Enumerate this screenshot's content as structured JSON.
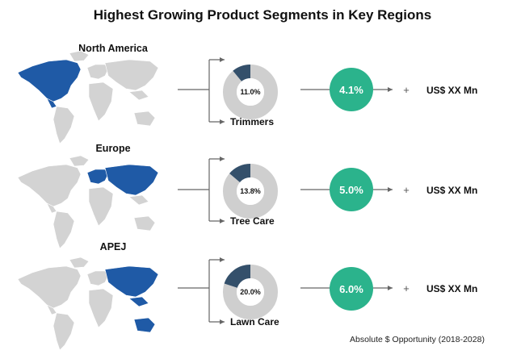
{
  "title": "Highest Growing Product Segments in Key Regions",
  "footnote": "Absolute $ Opportunity (2018-2028)",
  "colors": {
    "map_base": "#d3d3d3",
    "map_highlight": "#1f5aa6",
    "donut_share": "#34506b",
    "donut_rest": "#cfcfcf",
    "growth_circle": "#2bb38c",
    "arrow": "#666666"
  },
  "chart_data": {
    "type": "pie",
    "title": "Highest Growing Product Segments in Key Regions",
    "rows": [
      {
        "region": "North America",
        "segment": "Trimmers",
        "share": 11.0,
        "share_label": "11.0%",
        "growth_label": "4.1%",
        "opportunity": "US$ XX Mn",
        "plus": "+"
      },
      {
        "region": "Europe",
        "segment": "Tree Care",
        "share": 13.8,
        "share_label": "13.8%",
        "growth_label": "5.0%",
        "opportunity": "US$ XX Mn",
        "plus": "+"
      },
      {
        "region": "APEJ",
        "segment": "Lawn Care",
        "share": 20.0,
        "share_label": "20.0%",
        "growth_label": "6.0%",
        "opportunity": "US$ XX Mn",
        "plus": "+"
      }
    ]
  }
}
